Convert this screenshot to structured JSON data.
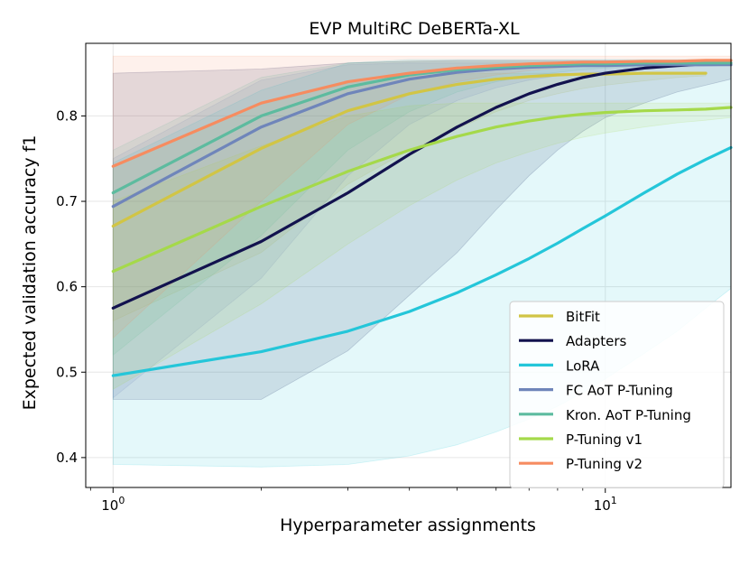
{
  "chart_data": {
    "type": "line",
    "title": "EVP MultiRC DeBERTa-XL",
    "xlabel": "Hyperparameter assignments",
    "ylabel": "Expected validation accuracy f1",
    "xscale": "log",
    "xlim": [
      0.88,
      18
    ],
    "ylim": [
      0.365,
      0.885
    ],
    "x_ticks": [
      {
        "value": 1,
        "base": "10",
        "exp": "0"
      },
      {
        "value": 10,
        "base": "10",
        "exp": "1"
      }
    ],
    "y_ticks": [
      0.4,
      0.5,
      0.6,
      0.7,
      0.8
    ],
    "grid": true,
    "legend_position": "lower-right",
    "x": [
      1,
      2,
      3,
      4,
      5,
      6,
      7,
      8,
      9,
      10,
      12,
      14,
      16,
      18
    ],
    "series": [
      {
        "name": "BitFit",
        "color": "#d1c545",
        "values": [
          0.671,
          0.762,
          0.806,
          0.826,
          0.837,
          0.843,
          0.846,
          0.848,
          0.849,
          0.849,
          0.85,
          0.85,
          0.85,
          null
        ],
        "band_upper": [
          0.742,
          0.815,
          0.838,
          0.846,
          0.849,
          0.85,
          0.85,
          0.85,
          0.85,
          0.85,
          0.85,
          0.85,
          0.85,
          null
        ],
        "band_lower": [
          0.56,
          0.64,
          0.72,
          0.76,
          0.785,
          0.805,
          0.818,
          0.826,
          0.832,
          0.836,
          0.841,
          0.845,
          0.847,
          null
        ]
      },
      {
        "name": "Adapters",
        "color": "#12124e",
        "values": [
          0.575,
          0.653,
          0.71,
          0.755,
          0.787,
          0.81,
          0.826,
          0.837,
          0.845,
          0.85,
          0.856,
          0.859,
          0.861,
          0.862
        ],
        "band_upper": [
          0.85,
          0.855,
          0.862,
          0.864,
          0.865,
          0.865,
          0.865,
          0.865,
          0.865,
          0.865,
          0.865,
          0.865,
          0.865,
          0.865
        ],
        "band_lower": [
          0.468,
          0.468,
          0.525,
          0.59,
          0.64,
          0.69,
          0.73,
          0.76,
          0.782,
          0.798,
          0.815,
          0.828,
          0.836,
          0.843
        ]
      },
      {
        "name": "LoRA",
        "color": "#24c6d9",
        "values": [
          0.496,
          0.524,
          0.548,
          0.571,
          0.593,
          0.614,
          0.633,
          0.651,
          0.668,
          0.683,
          0.71,
          0.732,
          0.749,
          0.763
        ],
        "band_upper": [
          0.745,
          0.83,
          0.862,
          0.866,
          0.866,
          0.866,
          0.866,
          0.866,
          0.866,
          0.866,
          0.866,
          0.866,
          0.866,
          0.866
        ],
        "band_lower": [
          0.392,
          0.389,
          0.392,
          0.402,
          0.415,
          0.43,
          0.445,
          0.46,
          0.476,
          0.492,
          0.522,
          0.548,
          0.575,
          0.598
        ]
      },
      {
        "name": "FC AoT P-Tuning",
        "color": "#6f85ba",
        "values": [
          0.694,
          0.787,
          0.826,
          0.843,
          0.851,
          0.855,
          0.857,
          0.858,
          0.859,
          0.859,
          0.86,
          0.86,
          0.86,
          0.86
        ],
        "band_upper": [
          0.75,
          0.842,
          0.86,
          0.862,
          0.862,
          0.862,
          0.862,
          0.862,
          0.862,
          0.862,
          0.862,
          0.862,
          0.862,
          0.862
        ],
        "band_lower": [
          0.47,
          0.61,
          0.73,
          0.79,
          0.818,
          0.833,
          0.842,
          0.847,
          0.85,
          0.852,
          0.855,
          0.857,
          0.858,
          0.859
        ]
      },
      {
        "name": "Kron. AoT P-Tuning",
        "color": "#5dbb9f",
        "values": [
          0.71,
          0.8,
          0.834,
          0.848,
          0.854,
          0.857,
          0.859,
          0.86,
          0.861,
          0.861,
          0.862,
          0.862,
          0.862,
          0.862
        ],
        "band_upper": [
          0.76,
          0.845,
          0.862,
          0.864,
          0.864,
          0.864,
          0.864,
          0.864,
          0.864,
          0.864,
          0.864,
          0.864,
          0.864,
          0.864
        ],
        "band_lower": [
          0.52,
          0.66,
          0.76,
          0.805,
          0.828,
          0.84,
          0.847,
          0.851,
          0.854,
          0.856,
          0.858,
          0.86,
          0.861,
          0.861
        ]
      },
      {
        "name": "P-Tuning v1",
        "color": "#a5d94a",
        "values": [
          0.618,
          0.694,
          0.735,
          0.76,
          0.776,
          0.787,
          0.794,
          0.799,
          0.802,
          0.804,
          0.806,
          0.807,
          0.808,
          0.81
        ],
        "band_upper": [
          0.7,
          0.765,
          0.8,
          0.812,
          0.815,
          0.815,
          0.815,
          0.815,
          0.815,
          0.815,
          0.815,
          0.815,
          0.815,
          0.815
        ],
        "band_lower": [
          0.48,
          0.58,
          0.65,
          0.695,
          0.725,
          0.745,
          0.758,
          0.768,
          0.775,
          0.78,
          0.787,
          0.792,
          0.795,
          0.798
        ]
      },
      {
        "name": "P-Tuning v2",
        "color": "#f68c60",
        "values": [
          0.741,
          0.815,
          0.84,
          0.85,
          0.856,
          0.859,
          0.861,
          0.862,
          0.863,
          0.863,
          0.864,
          0.864,
          0.865,
          0.865
        ],
        "band_upper": [
          0.87,
          0.87,
          0.87,
          0.87,
          0.87,
          0.87,
          0.87,
          0.87,
          0.87,
          0.87,
          0.87,
          0.87,
          0.87,
          0.87
        ],
        "band_lower": [
          0.54,
          0.7,
          0.79,
          0.825,
          0.84,
          0.848,
          0.853,
          0.856,
          0.858,
          0.859,
          0.861,
          0.862,
          0.863,
          0.864
        ]
      }
    ]
  }
}
